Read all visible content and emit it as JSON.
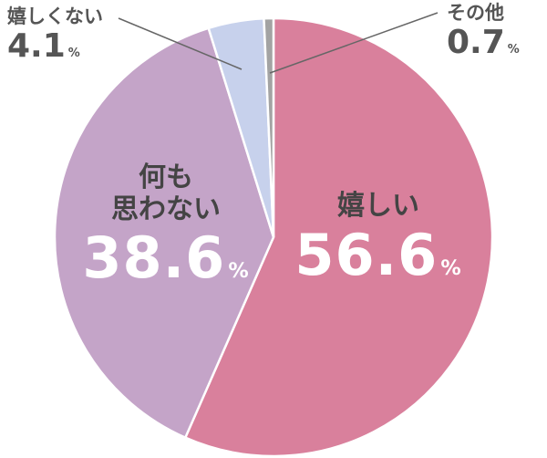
{
  "chart_data": {
    "type": "pie",
    "categories": [
      "嬉しい",
      "何も\n思わない",
      "嬉しくない",
      "その他"
    ],
    "values": [
      56.6,
      38.6,
      4.1,
      0.7
    ],
    "unit": "%",
    "colors": [
      "#d9809c",
      "#c4a4c8",
      "#c7d1ec",
      "#a3a3a3"
    ]
  }
}
